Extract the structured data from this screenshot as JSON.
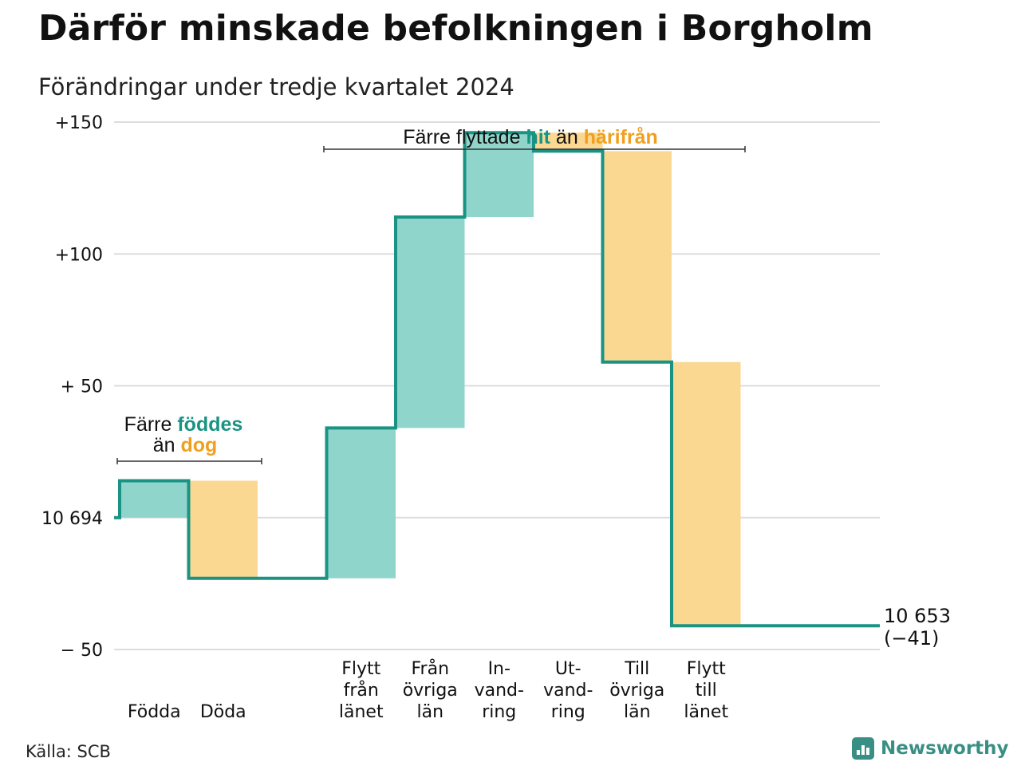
{
  "title": "Därför minskade befolkningen i Borgholm",
  "subtitle": "Förändringar under tredje kvartalet 2024",
  "source": "Källa: SCB",
  "brand": "Newsworthy",
  "colors": {
    "line": "#1a9384",
    "increase": "#8fd5cb",
    "decrease": "#fad892",
    "grid": "#dddddd",
    "text": "#111111",
    "label_hit": "#1a9384",
    "label_harifran": "#f0a020"
  },
  "annotations": {
    "births": {
      "line1_a": "Färre ",
      "line1_b": "föddes",
      "line2_a": "än ",
      "line2_b": "dog"
    },
    "moves": {
      "a": "Färre flyttade ",
      "b": "hit",
      "c": " än ",
      "d": "härifrån"
    },
    "end_value": "10 653",
    "end_change": "(−41)"
  },
  "chart_data": {
    "type": "waterfall",
    "start_value": 10694,
    "end_value": 10653,
    "total_change": -41,
    "ylim": [
      -50,
      150
    ],
    "yticks": [
      {
        "value": 150,
        "label": "+150"
      },
      {
        "value": 100,
        "label": "+100"
      },
      {
        "value": 50,
        "label": "+ 50"
      },
      {
        "value": 0,
        "label": "10 694"
      },
      {
        "value": -50,
        "label": "−  50"
      }
    ],
    "grid": true,
    "steps": [
      {
        "label": [
          "Födda"
        ],
        "change": 14
      },
      {
        "label": [
          "Döda"
        ],
        "change": -37
      },
      {
        "label": [],
        "change": 0
      },
      {
        "label": [
          "Flytt",
          "från",
          "länet"
        ],
        "change": 57
      },
      {
        "label": [
          "Från",
          "övriga",
          "län"
        ],
        "change": 80
      },
      {
        "label": [
          "In-",
          "vand-",
          "ring"
        ],
        "change": 32
      },
      {
        "label": [
          "Ut-",
          "vand-",
          "ring"
        ],
        "change": -7
      },
      {
        "label": [
          "Till",
          "övriga",
          "län"
        ],
        "change": -80
      },
      {
        "label": [
          "Flytt",
          "till",
          "länet"
        ],
        "change": -100
      }
    ]
  }
}
